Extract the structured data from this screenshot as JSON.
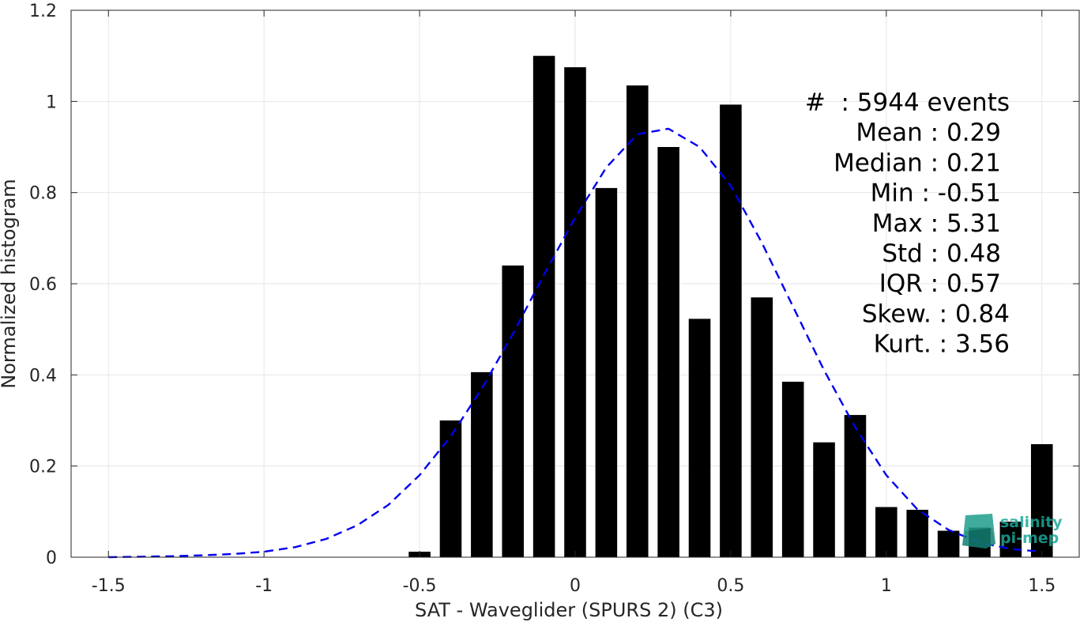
{
  "chart_data": {
    "type": "bar",
    "title": "",
    "xlabel": "SAT - Waveglider (SPURS 2) (C3)",
    "ylabel": "Normalized histogram",
    "xlim": [
      -1.62,
      1.62
    ],
    "ylim": [
      0,
      1.2
    ],
    "xticks": [
      -1.5,
      -1,
      -0.5,
      0,
      0.5,
      1,
      1.5
    ],
    "xtick_labels": [
      "-1.5",
      "-1",
      "-0.5",
      "0",
      "0.5",
      "1",
      "1.5"
    ],
    "yticks": [
      0,
      0.2,
      0.4,
      0.6,
      0.8,
      1,
      1.2
    ],
    "ytick_labels": [
      "0",
      "0.2",
      "0.4",
      "0.6",
      "0.8",
      "1",
      "1.2"
    ],
    "grid": true,
    "bar_width": 0.07,
    "bars": {
      "x": [
        -0.5,
        -0.4,
        -0.3,
        -0.2,
        -0.1,
        0,
        0.1,
        0.2,
        0.3,
        0.4,
        0.5,
        0.6,
        0.7,
        0.8,
        0.9,
        1.0,
        1.1,
        1.2,
        1.3,
        1.4,
        1.5
      ],
      "values": [
        0.012,
        0.3,
        0.406,
        0.64,
        1.1,
        1.075,
        0.81,
        1.035,
        0.9,
        0.523,
        0.993,
        0.57,
        0.385,
        0.252,
        0.312,
        0.11,
        0.104,
        0.058,
        0.065,
        0.078,
        0.248
      ],
      "color": "#000000"
    },
    "fit_curve": {
      "style": "dashed",
      "color": "#0000ee",
      "x": [
        -1.5,
        -1.4,
        -1.3,
        -1.2,
        -1.1,
        -1.0,
        -0.9,
        -0.8,
        -0.7,
        -0.6,
        -0.5,
        -0.4,
        -0.3,
        -0.2,
        -0.1,
        0,
        0.1,
        0.2,
        0.3,
        0.4,
        0.5,
        0.6,
        0.7,
        0.8,
        0.9,
        1.0,
        1.1,
        1.2,
        1.3,
        1.4,
        1.5
      ],
      "y": [
        0.0,
        0.001,
        0.002,
        0.004,
        0.007,
        0.012,
        0.022,
        0.04,
        0.07,
        0.115,
        0.18,
        0.265,
        0.37,
        0.49,
        0.62,
        0.745,
        0.855,
        0.928,
        0.94,
        0.9,
        0.815,
        0.69,
        0.55,
        0.41,
        0.285,
        0.18,
        0.105,
        0.06,
        0.032,
        0.018,
        0.012
      ]
    },
    "annotations": [
      "#  : 5944 events",
      "Mean : 0.29",
      "Median : 0.21",
      "Min : -0.51",
      "Max : 5.31",
      "Std : 0.48",
      "IQR : 0.57",
      "Skew. : 0.84",
      "Kurt. : 3.56"
    ]
  },
  "logo": {
    "line1": "salinity",
    "line2": "pi-mep",
    "color": "#1aa899"
  }
}
